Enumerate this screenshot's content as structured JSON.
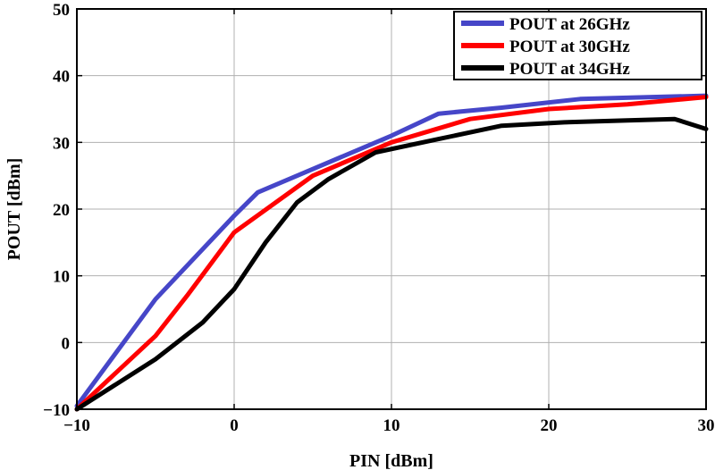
{
  "chart_data": {
    "type": "line",
    "title": "",
    "xlabel": "PIN [dBm]",
    "ylabel": "POUT [dBm]",
    "xlim": [
      -10,
      30
    ],
    "ylim": [
      -10,
      50
    ],
    "xticks": [
      -10,
      0,
      10,
      20,
      30
    ],
    "yticks": [
      -10,
      0,
      10,
      20,
      30,
      40,
      50
    ],
    "xtick_labels": [
      "−10",
      "0",
      "10",
      "20",
      "30"
    ],
    "ytick_labels": [
      "−10",
      "0",
      "10",
      "20",
      "30",
      "40",
      "50"
    ],
    "grid": true,
    "legend_position": "top-right",
    "series": [
      {
        "name": "POUT at 26GHz",
        "color": "#4646c8",
        "x": [
          -10,
          -5,
          0,
          1.5,
          5,
          10,
          13,
          17,
          22,
          30
        ],
        "y": [
          -9.5,
          6.5,
          19,
          22.5,
          26,
          31,
          34.3,
          35.2,
          36.5,
          37
        ]
      },
      {
        "name": "POUT at 30GHz",
        "color": "#ff0000",
        "x": [
          -10,
          -5,
          -3,
          0,
          5,
          10,
          15,
          20,
          25,
          30
        ],
        "y": [
          -10,
          1,
          7,
          16.5,
          25,
          30,
          33.5,
          35,
          35.7,
          36.8
        ]
      },
      {
        "name": "POUT at 34GHz",
        "color": "#000000",
        "x": [
          -10,
          -5,
          -2,
          0,
          2,
          4,
          6,
          9,
          13,
          17,
          21,
          25,
          28,
          30
        ],
        "y": [
          -10,
          -2.5,
          3,
          8,
          15,
          21,
          24.5,
          28.5,
          30.5,
          32.5,
          33,
          33.3,
          33.5,
          32
        ]
      }
    ]
  }
}
